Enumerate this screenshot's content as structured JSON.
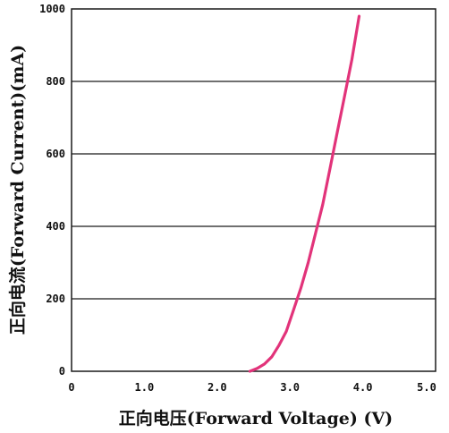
{
  "chart_data": {
    "type": "line",
    "title": "",
    "xlabel": "正向电压(Forward Voltage) (V)",
    "ylabel": "正向电流(Forward Current)(mA)",
    "xlim": [
      0,
      5
    ],
    "ylim": [
      0,
      1000
    ],
    "x_ticks": [
      0,
      1,
      2,
      3,
      4,
      5
    ],
    "x_tick_labels": [
      "0",
      "1.0",
      "2.0",
      "3.0",
      "4.0",
      "5.0"
    ],
    "y_ticks": [
      0,
      200,
      400,
      600,
      800,
      1000
    ],
    "y_tick_labels": [
      "0",
      "200",
      "400",
      "600",
      "800",
      "1000"
    ],
    "grid": "horizontal",
    "series": [
      {
        "color": "#e2337a",
        "x": [
          2.45,
          2.55,
          2.65,
          2.75,
          2.85,
          2.95,
          3.05,
          3.15,
          3.25,
          3.35,
          3.45,
          3.55,
          3.65,
          3.75,
          3.85,
          3.95
        ],
        "y": [
          0,
          8,
          20,
          40,
          72,
          110,
          170,
          230,
          300,
          380,
          460,
          560,
          660,
          760,
          860,
          980
        ]
      }
    ]
  }
}
